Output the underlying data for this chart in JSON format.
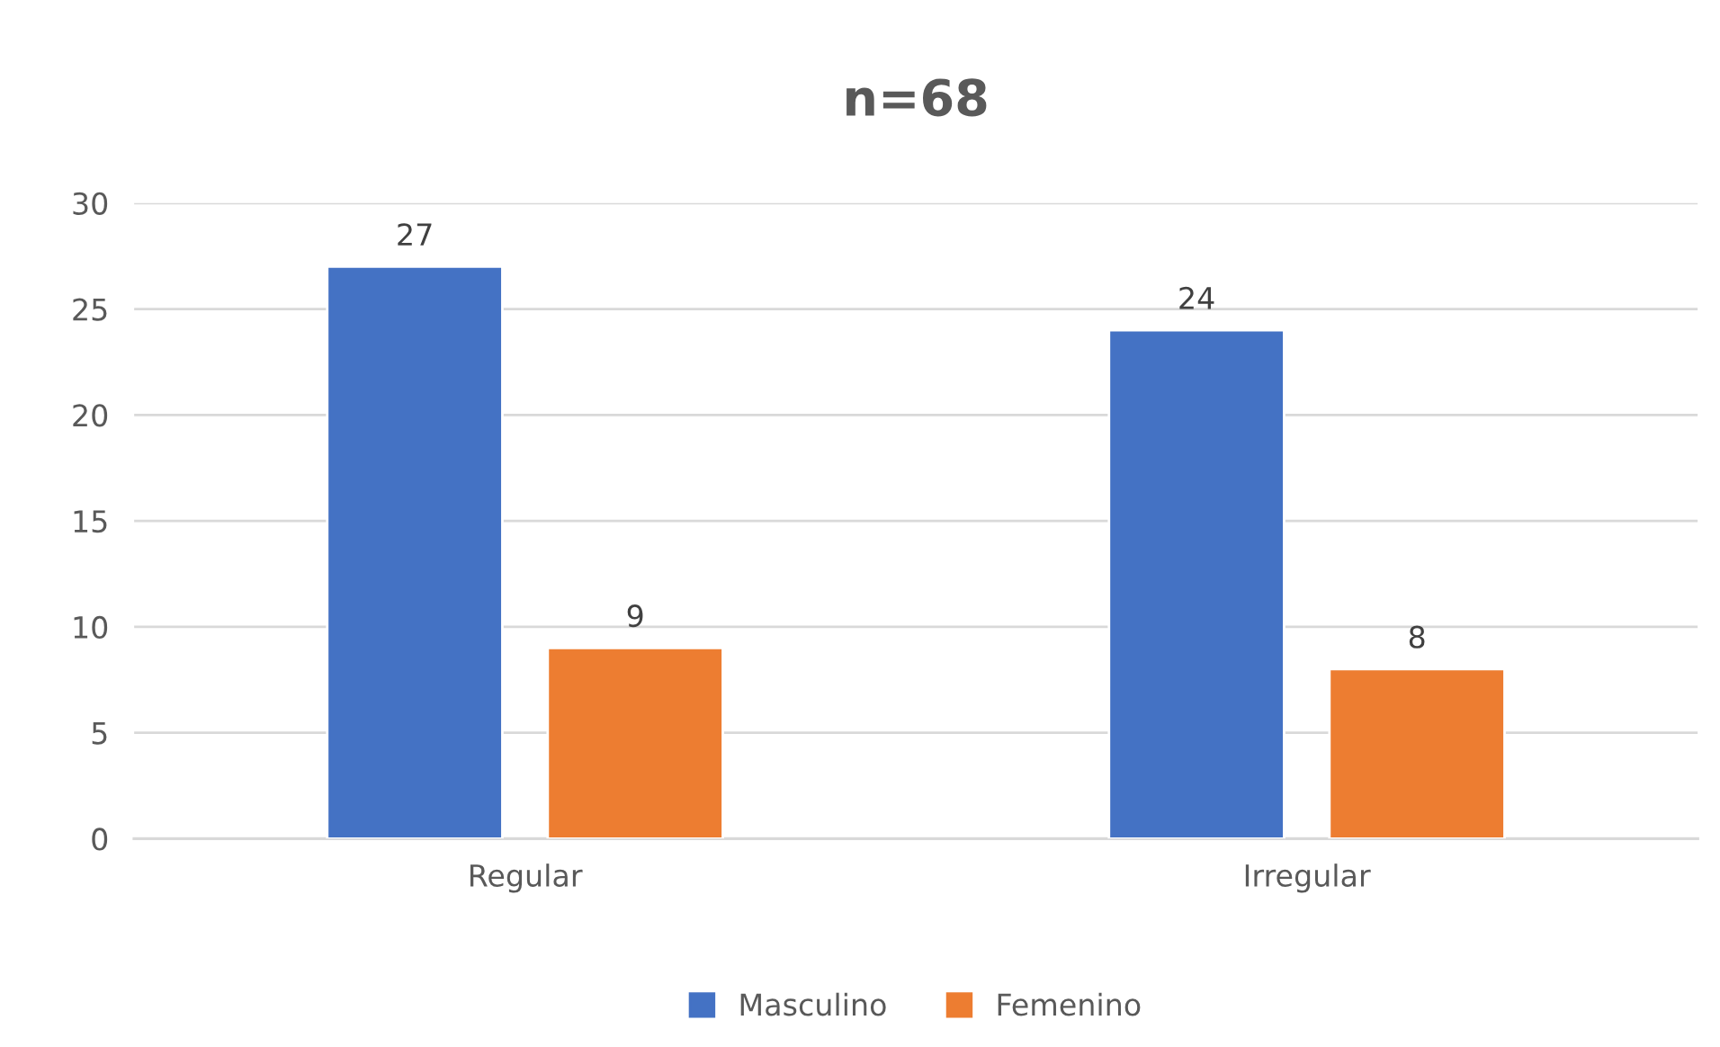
{
  "chart_data": {
    "type": "bar",
    "title": "n=68",
    "categories": [
      "Regular",
      "Irregular"
    ],
    "series": [
      {
        "name": "Masculino",
        "color": "#4472c4",
        "values": [
          27,
          24
        ]
      },
      {
        "name": "Femenino",
        "color": "#ed7d31",
        "values": [
          9,
          8
        ]
      }
    ],
    "ylim": [
      0,
      30
    ],
    "yticks": [
      0,
      5,
      10,
      15,
      20,
      25,
      30
    ],
    "grid": "y",
    "legend": "bottom",
    "data_labels": true
  }
}
